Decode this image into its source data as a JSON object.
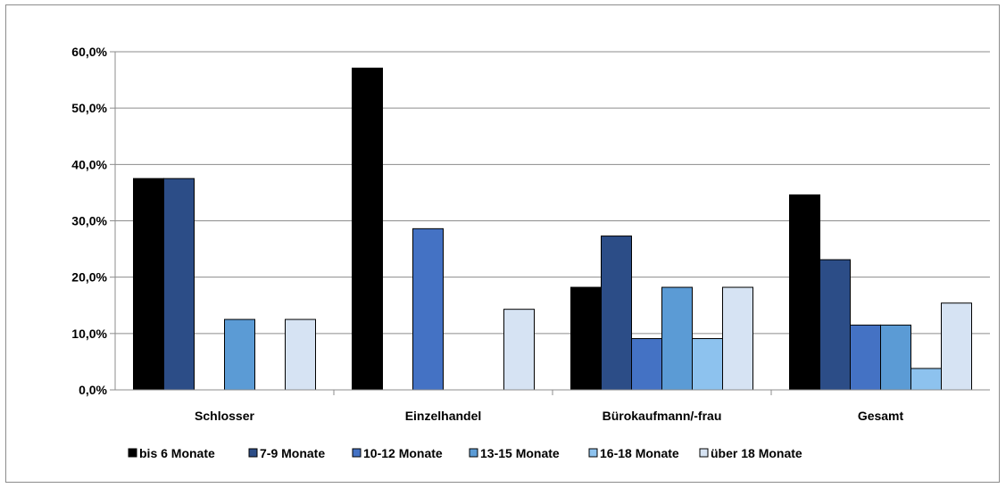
{
  "chart_data": {
    "type": "bar",
    "title": "",
    "xlabel": "",
    "ylabel": "",
    "categories": [
      "Schlosser",
      "Einzelhandel",
      "Bürokaufmann/-frau",
      "Gesamt"
    ],
    "ylim": [
      0,
      60
    ],
    "y_ticks": [
      "0,0%",
      "10,0%",
      "20,0%",
      "30,0%",
      "40,0%",
      "50,0%",
      "60,0%"
    ],
    "grid": true,
    "legend_position": "bottom",
    "series": [
      {
        "name": "bis 6 Monate",
        "color": "#000000",
        "values": [
          37.5,
          57.1,
          18.2,
          34.6
        ]
      },
      {
        "name": "7-9 Monate",
        "color": "#2c4d87",
        "values": [
          37.5,
          0,
          27.3,
          23.1
        ]
      },
      {
        "name": "10-12 Monate",
        "color": "#4472c4",
        "values": [
          0,
          28.6,
          9.1,
          11.5
        ]
      },
      {
        "name": "13-15 Monate",
        "color": "#5b9bd5",
        "values": [
          12.5,
          0,
          18.2,
          11.5
        ]
      },
      {
        "name": "16-18 Monate",
        "color": "#8dc2ee",
        "values": [
          0,
          0,
          9.1,
          3.8
        ]
      },
      {
        "name": "über 18 Monate",
        "color": "#d6e3f3",
        "values": [
          12.5,
          14.3,
          18.2,
          15.4
        ]
      }
    ]
  }
}
